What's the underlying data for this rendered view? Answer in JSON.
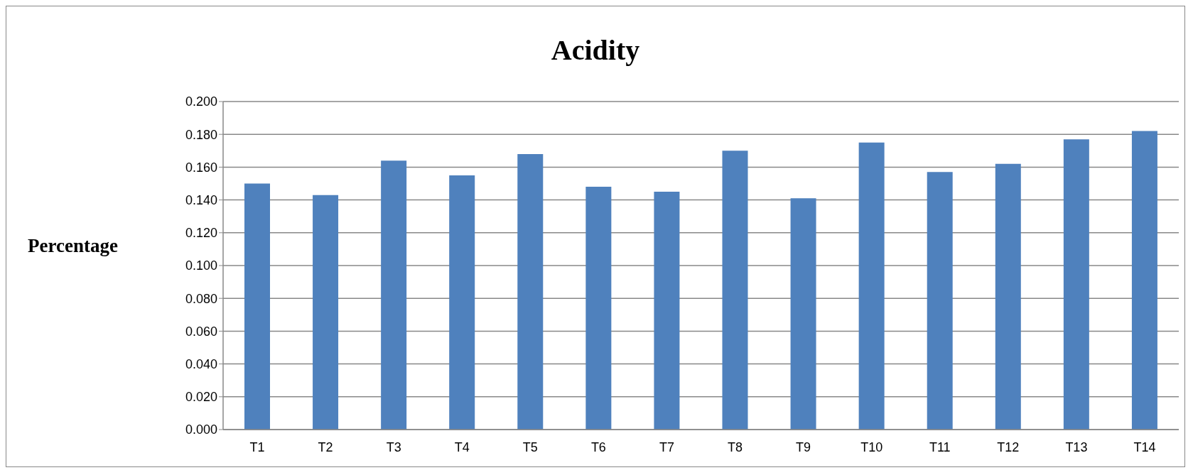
{
  "chart_data": {
    "type": "bar",
    "title": "Acidity",
    "ylabel": "Percentage",
    "categories": [
      "T1",
      "T2",
      "T3",
      "T4",
      "T5",
      "T6",
      "T7",
      "T8",
      "T9",
      "T10",
      "T11",
      "T12",
      "T13",
      "T14"
    ],
    "values": [
      0.15,
      0.143,
      0.164,
      0.155,
      0.168,
      0.148,
      0.145,
      0.17,
      0.141,
      0.175,
      0.157,
      0.162,
      0.177,
      0.182
    ],
    "color": "#4f81bd",
    "ylim": [
      0,
      0.2
    ],
    "yticks": [
      {
        "value": 0,
        "label": "0.000"
      },
      {
        "value": 0.02,
        "label": "0.020"
      },
      {
        "value": 0.04,
        "label": "0.040"
      },
      {
        "value": 0.06,
        "label": "0.060"
      },
      {
        "value": 0.08,
        "label": "0.080"
      },
      {
        "value": 0.1,
        "label": "0.100"
      },
      {
        "value": 0.12,
        "label": "0.120"
      },
      {
        "value": 0.14,
        "label": "0.140"
      },
      {
        "value": 0.16,
        "label": "0.160"
      },
      {
        "value": 0.18,
        "label": "0.180"
      },
      {
        "value": 0.2,
        "label": "0.200"
      }
    ],
    "grid": "y"
  }
}
